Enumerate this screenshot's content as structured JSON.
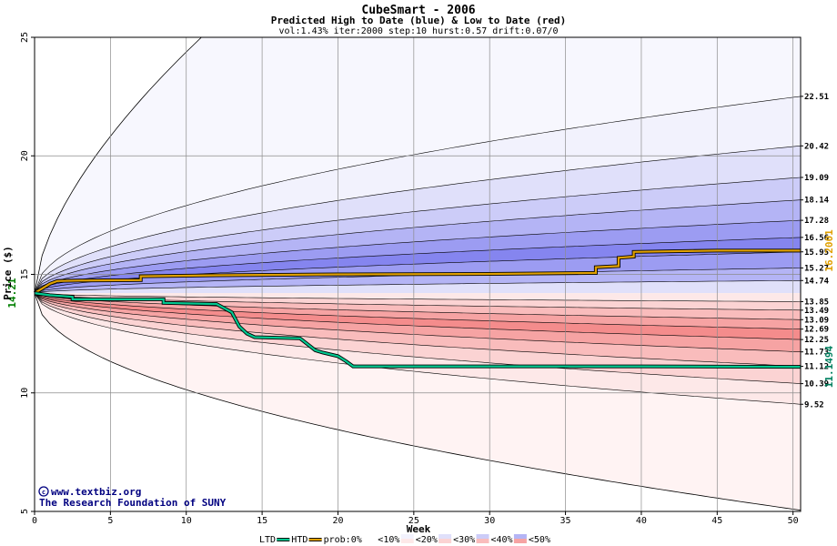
{
  "chart_data": {
    "type": "area",
    "title": "CubeSmart - 2006",
    "subtitle": "Predicted High to Date (blue) &  Low to Date (red)",
    "params": "vol:1.43% iter:2000 step:10 hurst:0.57 drift:0.07/0",
    "xlabel": "Week",
    "ylabel": "Price ($)",
    "xlim": [
      0,
      50.5
    ],
    "ylim": [
      5,
      25
    ],
    "x_ticks": [
      0,
      5,
      10,
      15,
      20,
      25,
      30,
      35,
      40,
      45,
      50
    ],
    "y_ticks": [
      5,
      10,
      15,
      20,
      25
    ],
    "grid": true,
    "start_price": 14.21,
    "start_price_label": "14.21",
    "upper_levels": [
      {
        "value": 22.51,
        "label": "22.51",
        "color": "#f2f2fd"
      },
      {
        "value": 20.42,
        "label": "20.42",
        "color": "#e0e0fa"
      },
      {
        "value": 19.09,
        "label": "19.09",
        "color": "#ccccf8"
      },
      {
        "value": 18.14,
        "label": "18.14",
        "color": "#b4b4f5"
      },
      {
        "value": 17.28,
        "label": "17.28",
        "color": "#9c9cf2"
      },
      {
        "value": 16.56,
        "label": "16.56",
        "color": "#8585ef"
      },
      {
        "value": 15.95,
        "label": "15.95",
        "color": "#9c9cf2"
      },
      {
        "value": 15.27,
        "label": "15.27",
        "color": "#b4b4f5"
      },
      {
        "value": 14.74,
        "label": "14.74",
        "color": "#e0e0fa"
      }
    ],
    "lower_levels": [
      {
        "value": 13.85,
        "label": "13.85",
        "color": "#fde8e8"
      },
      {
        "value": 13.49,
        "label": "13.49",
        "color": "#fbd3d3"
      },
      {
        "value": 13.09,
        "label": "13.09",
        "color": "#f9bcbc"
      },
      {
        "value": 12.69,
        "label": "12.69",
        "color": "#f6a3a3"
      },
      {
        "value": 12.25,
        "label": "12.25",
        "color": "#f48c8c"
      },
      {
        "value": 11.73,
        "label": "11.73",
        "color": "#f6a3a3"
      },
      {
        "value": 11.12,
        "label": "11.12",
        "color": "#f9bcbc"
      },
      {
        "value": 10.39,
        "label": "10.39",
        "color": "#fbd3d3"
      },
      {
        "value": 9.52,
        "label": "9.52",
        "color": "#fde8e8"
      }
    ],
    "outer_upper_color": "#f7f7fe",
    "outer_lower_color": "#fff3f3",
    "outer_upper_top_at_week_11": 25,
    "outer_lower_end": 5.05,
    "htd_series": {
      "name": "HTD",
      "color": "#e0a000",
      "end_label": "16.2001",
      "points": [
        [
          0,
          14.21
        ],
        [
          0.5,
          14.4
        ],
        [
          1,
          14.6
        ],
        [
          1.5,
          14.72
        ],
        [
          3,
          14.74
        ],
        [
          7,
          14.76
        ],
        [
          7,
          14.92
        ],
        [
          12,
          14.96
        ],
        [
          20,
          15.0
        ],
        [
          30,
          15.02
        ],
        [
          37,
          15.06
        ],
        [
          37,
          15.3
        ],
        [
          38.5,
          15.35
        ],
        [
          38.5,
          15.7
        ],
        [
          39.5,
          15.75
        ],
        [
          39.5,
          15.95
        ],
        [
          45,
          16.0
        ],
        [
          50.5,
          16.0
        ]
      ]
    },
    "ltd_series": {
      "name": "LTD",
      "color": "#00c890",
      "end_label": "11.1494",
      "points": [
        [
          0,
          14.21
        ],
        [
          1,
          14.12
        ],
        [
          2.5,
          14.05
        ],
        [
          2.5,
          13.95
        ],
        [
          8.5,
          13.95
        ],
        [
          8.5,
          13.8
        ],
        [
          12,
          13.75
        ],
        [
          13,
          13.4
        ],
        [
          13.5,
          12.8
        ],
        [
          14,
          12.5
        ],
        [
          14.5,
          12.35
        ],
        [
          17.5,
          12.3
        ],
        [
          18,
          12.05
        ],
        [
          18.5,
          11.8
        ],
        [
          19,
          11.7
        ],
        [
          20,
          11.55
        ],
        [
          20.5,
          11.35
        ],
        [
          21,
          11.12
        ],
        [
          30,
          11.12
        ],
        [
          40,
          11.12
        ],
        [
          50.5,
          11.1
        ]
      ]
    },
    "legend": [
      "LTD",
      "HTD",
      "prob:0%",
      "<10%",
      "<20%",
      "<30%",
      "<40%",
      "<50%"
    ],
    "legend_colors": {
      "ltd": "#00c890",
      "htd": "#e0a000",
      "p0": "#ffffff",
      "p10_blue": "#f2f2fd",
      "p10_red": "#fde8e8",
      "p20_blue": "#e0e0fa",
      "p20_red": "#fbd3d3",
      "p30_blue": "#ccccf8",
      "p30_red": "#f9bcbc",
      "p40_blue": "#b4b4f5",
      "p40_red": "#f6a3a3",
      "p50_blue": "#8585ef",
      "p50_red": "#f48c8c"
    }
  },
  "credits": {
    "line1": "www.textbiz.org",
    "line2": "The Research Foundation of SUNY"
  }
}
